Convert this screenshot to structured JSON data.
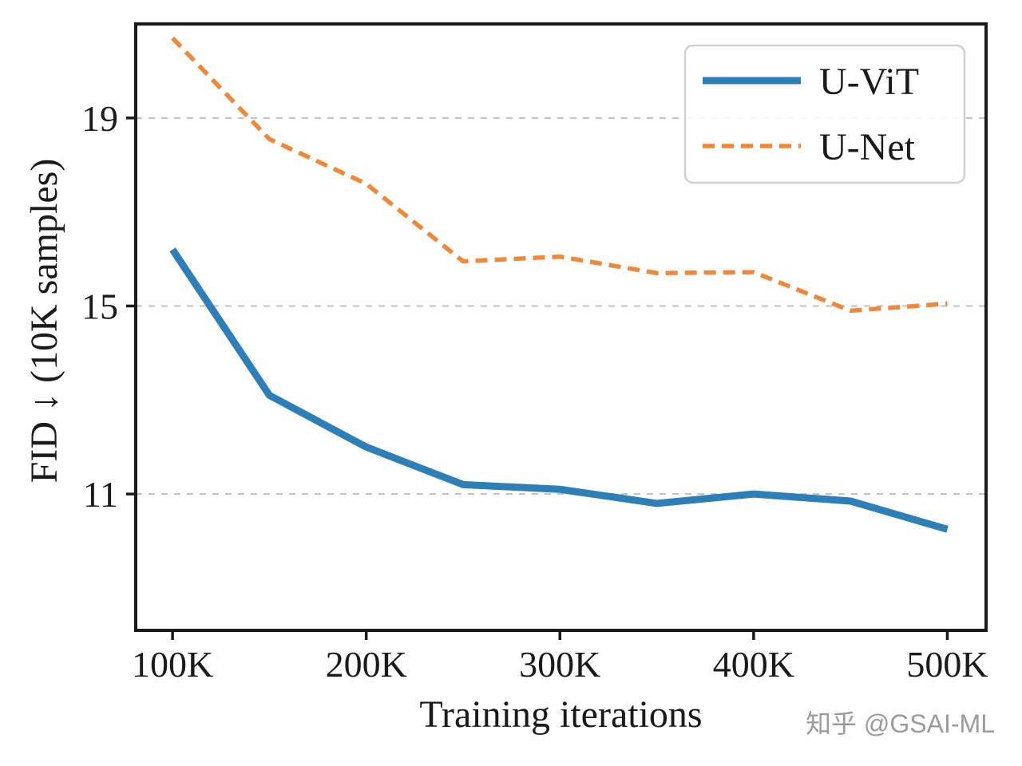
{
  "watermark": {
    "text": "知乎 @GSAI-ML"
  },
  "colors": {
    "uvit_blue": "#2e7fb8",
    "unet_orange": "#f0883a",
    "grid_gray": "#bfbfbf",
    "spine_black": "#1a1a1a",
    "legend_border": "#d0d0d0",
    "watermark_gray": "#9b9b9b"
  },
  "chart_data": {
    "type": "line",
    "title": "",
    "xlabel": "Training iterations",
    "ylabel": "FID ↓ (10K samples)",
    "x": [
      100000,
      150000,
      200000,
      250000,
      300000,
      350000,
      400000,
      450000,
      500000
    ],
    "x_tick_values": [
      100000,
      200000,
      300000,
      400000,
      500000
    ],
    "x_tick_labels": [
      "100K",
      "200K",
      "300K",
      "400K",
      "500K"
    ],
    "y_tick_values": [
      11,
      15,
      19
    ],
    "y_tick_labels": [
      "11",
      "15",
      "19"
    ],
    "xlim": [
      81000,
      520000
    ],
    "ylim": [
      8.1,
      21.0
    ],
    "grid": "horizontal-dashed",
    "legend_position": "upper right",
    "series": [
      {
        "name": "U-ViT",
        "style": "solid",
        "color": "#2e7fb8",
        "values": [
          16.2,
          13.1,
          12.0,
          11.2,
          11.1,
          10.8,
          11.0,
          10.85,
          10.25
        ]
      },
      {
        "name": "U-Net",
        "style": "dashed",
        "color": "#f0883a",
        "values": [
          20.7,
          18.55,
          17.6,
          15.95,
          16.05,
          15.7,
          15.72,
          14.9,
          15.05
        ]
      }
    ]
  }
}
